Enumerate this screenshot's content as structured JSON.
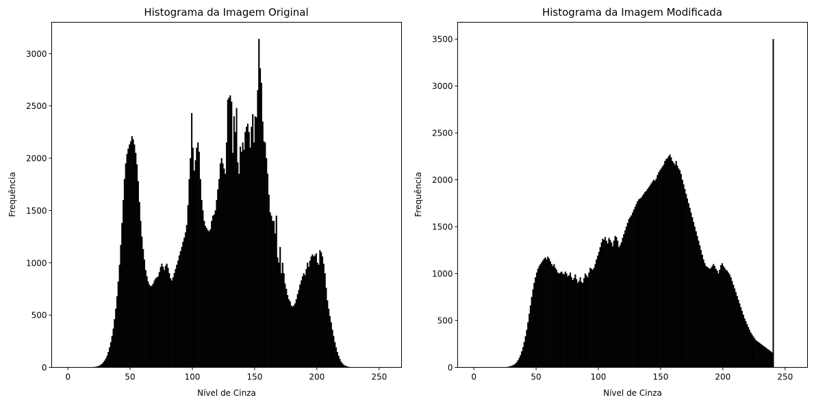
{
  "chart_data": [
    {
      "type": "bar",
      "title": "Histograma da Imagem Original",
      "xlabel": "Nível de Cinza",
      "ylabel": "Frequência",
      "xlim": [
        -13,
        268
      ],
      "ylim": [
        0,
        3300
      ],
      "xticks": [
        0,
        50,
        100,
        150,
        200,
        250
      ],
      "yticks": [
        0,
        500,
        1000,
        1500,
        2000,
        2500,
        3000
      ],
      "bar_color": "#000000",
      "series": [
        {
          "x_start": 0,
          "bin_width": 1,
          "values": [
            0,
            0,
            0,
            0,
            0,
            0,
            0,
            0,
            0,
            0,
            0,
            0,
            0,
            0,
            0,
            0,
            0,
            0,
            0,
            1,
            2,
            4,
            5,
            8,
            12,
            18,
            25,
            35,
            48,
            65,
            85,
            110,
            145,
            190,
            240,
            300,
            370,
            460,
            560,
            680,
            820,
            980,
            1170,
            1380,
            1600,
            1800,
            1950,
            2040,
            2090,
            2130,
            2160,
            2210,
            2180,
            2130,
            2050,
            1940,
            1780,
            1580,
            1400,
            1250,
            1130,
            1030,
            930,
            870,
            820,
            790,
            775,
            780,
            800,
            830,
            850,
            860,
            870,
            910,
            960,
            990,
            960,
            930,
            970,
            990,
            950,
            900,
            850,
            830,
            860,
            900,
            940,
            980,
            1020,
            1070,
            1110,
            1150,
            1200,
            1240,
            1290,
            1360,
            1550,
            1800,
            2000,
            2430,
            2100,
            1880,
            1980,
            2100,
            2150,
            2060,
            1800,
            1600,
            1500,
            1400,
            1350,
            1330,
            1310,
            1300,
            1320,
            1400,
            1450,
            1460,
            1500,
            1600,
            1700,
            1800,
            1950,
            2000,
            1950,
            1900,
            1850,
            2150,
            2560,
            2580,
            2600,
            2540,
            2050,
            2400,
            2250,
            2480,
            1960,
            1850,
            2110,
            2060,
            2150,
            2080,
            2250,
            2300,
            2330,
            2250,
            2100,
            2300,
            2420,
            2150,
            2400,
            2390,
            2650,
            3140,
            2860,
            2720,
            2350,
            2160,
            2150,
            2000,
            1850,
            1650,
            1480,
            1450,
            1400,
            1400,
            1280,
            1450,
            1050,
            1000,
            1150,
            900,
            1000,
            900,
            800,
            750,
            690,
            650,
            630,
            590,
            580,
            590,
            610,
            650,
            700,
            740,
            790,
            830,
            870,
            900,
            880,
            940,
            1000,
            960,
            1020,
            1060,
            1080,
            1060,
            1070,
            1090,
            1000,
            980,
            1120,
            1100,
            1060,
            990,
            900,
            760,
            640,
            560,
            490,
            430,
            360,
            300,
            240,
            190,
            145,
            110,
            80,
            55,
            38,
            26,
            18,
            12,
            8,
            5,
            3,
            2,
            1,
            1,
            0,
            0,
            0,
            0,
            0,
            0,
            0,
            0,
            0,
            0,
            0,
            0,
            0,
            0,
            0,
            0,
            0,
            0,
            0,
            0,
            0,
            0,
            0,
            0,
            0,
            0
          ]
        }
      ]
    },
    {
      "type": "bar",
      "title": "Histograma da Imagem Modificada",
      "xlabel": "Nível de Cinza",
      "ylabel": "Frequência",
      "xlim": [
        -13,
        268
      ],
      "ylim": [
        0,
        3680
      ],
      "xticks": [
        0,
        50,
        100,
        150,
        200,
        250
      ],
      "yticks": [
        0,
        500,
        1000,
        1500,
        2000,
        2500,
        3000,
        3500
      ],
      "bar_color": "#000000",
      "series": [
        {
          "x_start": 0,
          "bin_width": 1,
          "values": [
            0,
            0,
            0,
            0,
            0,
            0,
            0,
            0,
            0,
            0,
            0,
            0,
            0,
            0,
            0,
            0,
            0,
            0,
            0,
            0,
            0,
            0,
            0,
            0,
            1,
            2,
            3,
            5,
            8,
            12,
            16,
            22,
            30,
            40,
            55,
            75,
            100,
            130,
            170,
            215,
            270,
            330,
            400,
            480,
            570,
            660,
            750,
            830,
            900,
            960,
            1010,
            1050,
            1080,
            1100,
            1120,
            1140,
            1160,
            1170,
            1150,
            1180,
            1160,
            1130,
            1100,
            1080,
            1100,
            1060,
            1040,
            1010,
            1000,
            1010,
            1020,
            1000,
            990,
            1020,
            1000,
            970,
            980,
            1010,
            960,
            930,
            950,
            990,
            940,
            900,
            920,
            960,
            910,
            900,
            950,
            1000,
            980,
            960,
            1010,
            1060,
            1050,
            1040,
            1060,
            1100,
            1150,
            1190,
            1230,
            1280,
            1330,
            1370,
            1360,
            1390,
            1350,
            1320,
            1380,
            1360,
            1330,
            1290,
            1350,
            1400,
            1390,
            1350,
            1280,
            1300,
            1330,
            1380,
            1420,
            1460,
            1500,
            1540,
            1580,
            1600,
            1620,
            1650,
            1680,
            1710,
            1740,
            1770,
            1790,
            1800,
            1810,
            1830,
            1850,
            1870,
            1880,
            1900,
            1920,
            1940,
            1960,
            1980,
            2000,
            1990,
            2010,
            2050,
            2080,
            2100,
            2120,
            2140,
            2160,
            2200,
            2220,
            2230,
            2250,
            2270,
            2240,
            2200,
            2180,
            2160,
            2200,
            2150,
            2120,
            2100,
            2060,
            2000,
            1950,
            1900,
            1850,
            1800,
            1750,
            1700,
            1650,
            1600,
            1550,
            1500,
            1450,
            1400,
            1350,
            1300,
            1250,
            1200,
            1150,
            1110,
            1080,
            1070,
            1060,
            1050,
            1060,
            1080,
            1100,
            1080,
            1050,
            1030,
            1000,
            1040,
            1090,
            1110,
            1080,
            1060,
            1040,
            1030,
            1010,
            990,
            960,
            920,
            880,
            840,
            800,
            760,
            720,
            680,
            640,
            600,
            560,
            520,
            490,
            460,
            430,
            400,
            370,
            350,
            330,
            310,
            290,
            280,
            270,
            260,
            250,
            240,
            230,
            220,
            210,
            200,
            190,
            180,
            170,
            160,
            3500
          ]
        }
      ]
    }
  ]
}
